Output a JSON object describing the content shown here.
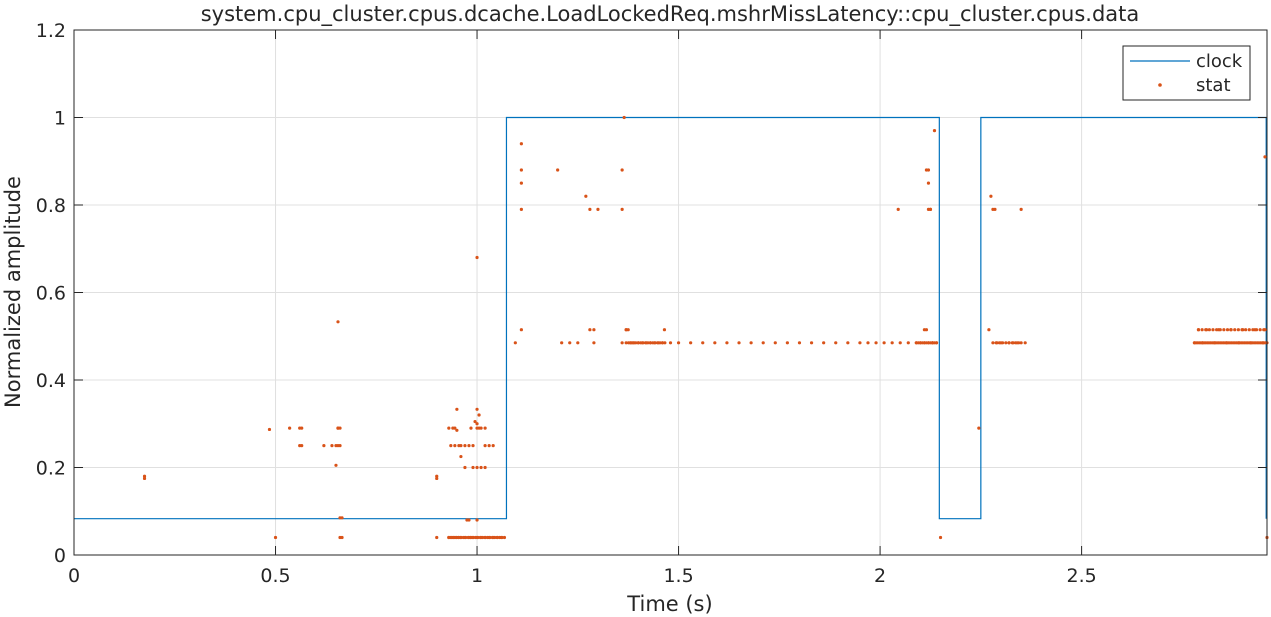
{
  "chart_data": {
    "type": "line",
    "title": "system.cpu_cluster.cpus.dcache.LoadLockedReq.mshrMissLatency::cpu_cluster.cpus.data",
    "xlabel": "Time (s)",
    "ylabel": "Normalized amplitude",
    "xlim": [
      0,
      2.96
    ],
    "ylim": [
      0,
      1.2
    ],
    "xticks": [
      0,
      0.5,
      1,
      1.5,
      2,
      2.5
    ],
    "xtick_labels": [
      "0",
      "0.5",
      "1",
      "1.5",
      "2",
      "2.5"
    ],
    "yticks": [
      0,
      0.2,
      0.4,
      0.6,
      0.8,
      1,
      1.2
    ],
    "ytick_labels": [
      "0",
      "0.2",
      "0.4",
      "0.6",
      "0.8",
      "1",
      "1.2"
    ],
    "grid": true,
    "legend_position": "top-right",
    "colors": {
      "clock": "#0072bd",
      "stat": "#d95319",
      "grid": "#e0e0e0",
      "axis": "#262626"
    },
    "series": [
      {
        "name": "clock",
        "style": "step-line",
        "x": [
          0,
          1.073,
          1.073,
          2.147,
          2.147,
          2.25,
          2.25,
          2.958,
          2.958
        ],
        "y": [
          0.083,
          0.083,
          1,
          1,
          0.083,
          0.083,
          1,
          1,
          0.083
        ]
      },
      {
        "name": "stat",
        "style": "markers",
        "x": [
          0.175,
          0.175,
          0.485,
          0.5,
          0.535,
          0.56,
          0.565,
          0.56,
          0.565,
          0.62,
          0.64,
          0.65,
          0.655,
          0.66,
          0.655,
          0.655,
          0.66,
          0.65,
          0.655,
          0.66,
          0.665,
          0.66,
          0.665,
          0.9,
          0.9,
          0.9,
          0.93,
          0.935,
          0.94,
          0.945,
          0.95,
          0.955,
          0.96,
          0.97,
          0.98,
          0.985,
          0.99,
          1.0,
          1.01,
          1.02,
          1.03,
          1.04,
          1.05,
          1.06,
          0.93,
          0.94,
          0.945,
          0.95,
          0.935,
          0.945,
          0.955,
          0.96,
          0.97,
          0.98,
          0.975,
          0.99,
          1.0,
          1.005,
          1.01,
          1.02,
          1.03,
          1.04,
          0.99,
          1.0,
          1.01,
          1.02,
          1.0,
          1.005,
          1.02,
          0.95,
          1.0,
          0.98,
          1.0,
          0.96,
          0.97,
          0.985,
          0.995,
          1.0,
          1.095,
          1.11,
          1.11,
          1.11,
          1.11,
          1.11,
          1.2,
          1.21,
          1.23,
          1.25,
          1.27,
          1.28,
          1.28,
          1.29,
          1.29,
          1.3,
          1.36,
          1.36,
          1.365,
          1.36,
          1.37,
          1.375,
          1.38,
          1.385,
          1.39,
          1.4,
          1.41,
          1.42,
          1.43,
          1.44,
          1.45,
          1.46,
          1.48,
          1.5,
          1.53,
          1.56,
          1.59,
          1.62,
          1.65,
          1.68,
          1.71,
          1.74,
          1.77,
          1.8,
          1.83,
          1.86,
          1.89,
          1.92,
          1.95,
          1.97,
          1.99,
          2.01,
          2.03,
          2.05,
          2.07,
          2.09,
          2.1,
          2.11,
          2.12,
          2.13,
          2.14,
          1.465,
          1.37,
          2.045,
          2.11,
          2.115,
          2.12,
          2.125,
          2.115,
          2.12,
          2.12,
          2.125,
          2.135,
          2.13,
          2.15,
          2.245,
          2.27,
          2.275,
          2.28,
          2.285,
          2.29,
          2.3,
          2.32,
          2.33,
          2.34,
          2.35,
          2.36,
          2.35,
          2.78,
          2.8,
          2.83,
          2.86,
          2.89,
          2.92,
          2.95,
          2.79,
          2.81,
          2.84,
          2.87,
          2.9,
          2.93,
          2.955,
          2.955,
          2.96
        ]
      }
    ]
  }
}
